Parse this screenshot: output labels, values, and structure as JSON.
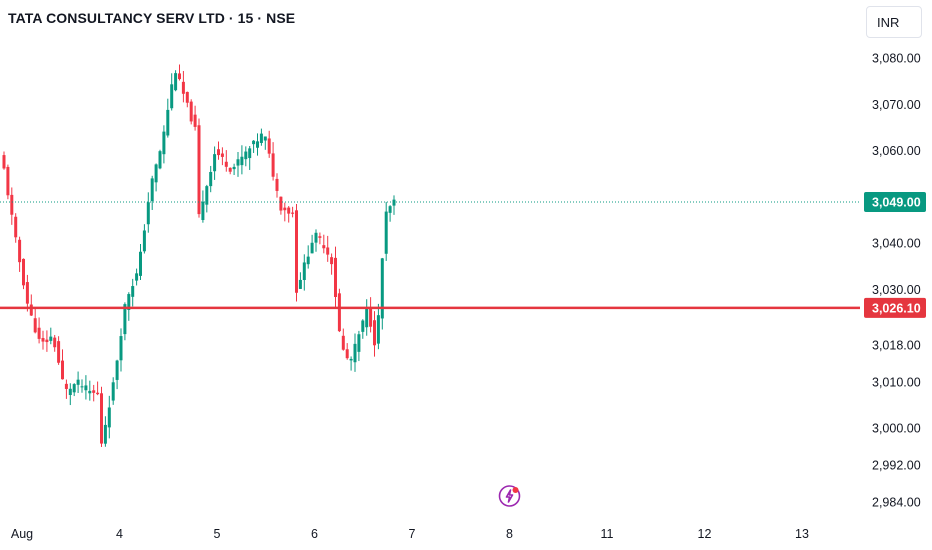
{
  "header": {
    "title": "TATA CONSULTANCY SERV LTD · 15 · NSE"
  },
  "toolbar": {
    "currency_label": "INR"
  },
  "colors": {
    "up": "#089981",
    "down": "#f23645",
    "level_line": "#e5363f",
    "price_badge": "#089981",
    "level_badge": "#e5363f",
    "marker": "#9c27b0"
  },
  "icons": {
    "marker": "lightning-icon"
  },
  "chart_data": {
    "type": "candlestick",
    "title": "TATA CONSULTANCY SERV LTD · 15 · NSE",
    "currency": "INR",
    "ylim": [
      2982,
      3084
    ],
    "y_ticks": [
      {
        "value": 3080,
        "label": "3,080.00"
      },
      {
        "value": 3070,
        "label": "3,070.00"
      },
      {
        "value": 3060,
        "label": "3,060.00"
      },
      {
        "value": 3040,
        "label": "3,040.00"
      },
      {
        "value": 3030,
        "label": "3,030.00"
      },
      {
        "value": 3018,
        "label": "3,018.00"
      },
      {
        "value": 3010,
        "label": "3,010.00"
      },
      {
        "value": 3000,
        "label": "3,000.00"
      },
      {
        "value": 2992,
        "label": "2,992.00"
      },
      {
        "value": 2984,
        "label": "2,984.00"
      }
    ],
    "x_ticks": [
      "Aug",
      "4",
      "5",
      "6",
      "7",
      "8",
      "11",
      "12",
      "13"
    ],
    "session_bars": 25,
    "sessions": [
      {
        "label": "Aug",
        "points": [
          3056,
          3040,
          3026,
          3018,
          3020,
          3008,
          3010,
          3008,
          3007
        ]
      },
      {
        "label": "4",
        "points": [
          2997,
          3010,
          3028,
          3034,
          3052,
          3062,
          3078,
          3070,
          3062
        ]
      },
      {
        "label": "5",
        "points": [
          3046,
          3060,
          3056,
          3060,
          3064,
          3048,
          3046
        ]
      },
      {
        "label": "6",
        "points": [
          3030,
          3036,
          3042,
          3040,
          3036,
          3018,
          3014,
          3020,
          3026,
          3017,
          3046,
          3049
        ]
      }
    ],
    "last_price": {
      "value": 3049,
      "label": "3,049.00"
    },
    "horizontal_level": {
      "value": 3026.1,
      "label": "3,026.10"
    },
    "marker_position": "8"
  }
}
